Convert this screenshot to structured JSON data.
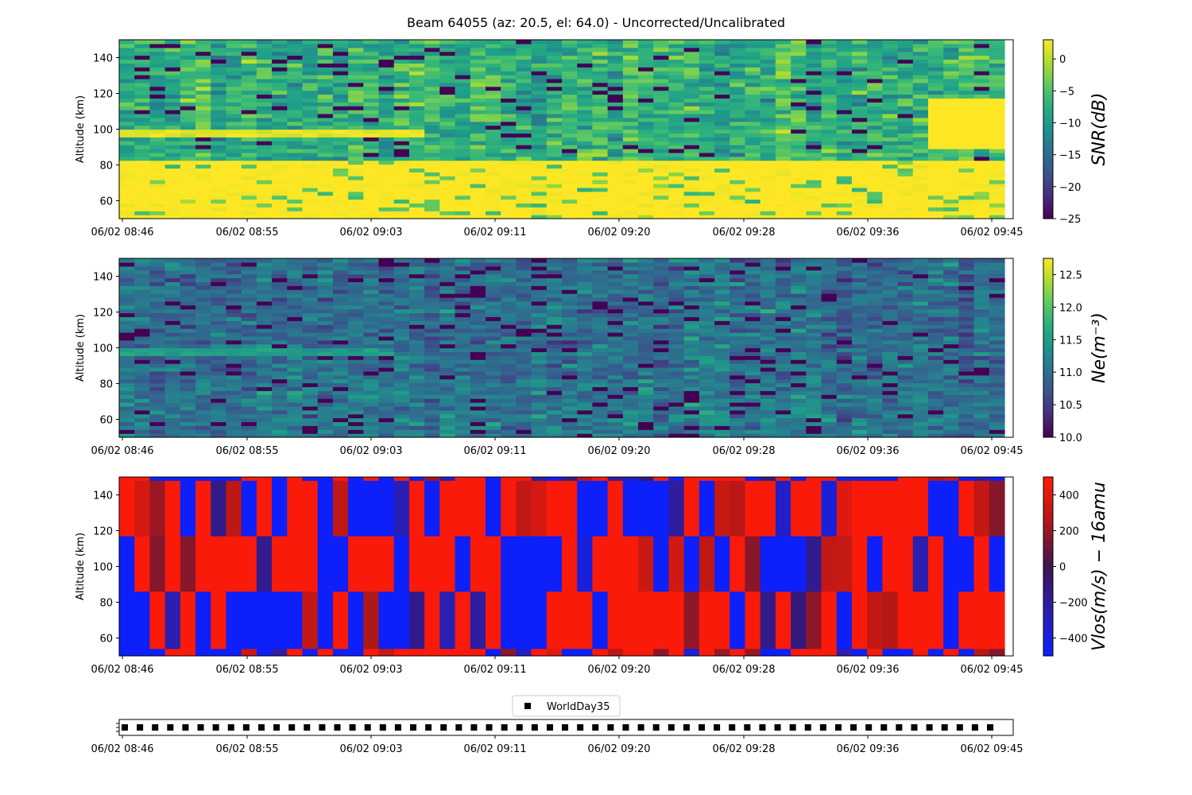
{
  "figure": {
    "title": "Beam 64055 (az: 20.5, el: 64.0) - Uncorrected/Uncalibrated"
  },
  "chart_data": [
    {
      "type": "heatmap",
      "name": "snr",
      "ylabel": "Altitude (km)",
      "ylim": [
        50,
        150
      ],
      "yticks": [
        60,
        80,
        100,
        120,
        140
      ],
      "x_ticklabels": [
        "06/02 08:46",
        "06/02 08:55",
        "06/02 09:03",
        "06/02 09:11",
        "06/02 09:20",
        "06/02 09:28",
        "06/02 09:36",
        "06/02 09:45"
      ],
      "colormap": "viridis",
      "colorbar_label": "SNR(dB)",
      "colorbar_range": [
        -25,
        3
      ],
      "colorbar_ticks": [
        0,
        -5,
        -10,
        -15,
        -20,
        -25
      ],
      "colorbar_ticklabels": [
        "0",
        "−5",
        "−10",
        "−15",
        "−20",
        "−25"
      ],
      "description_values": {
        "low_altitude_band_km": [
          50,
          82
        ],
        "low_altitude_snr_db": 3,
        "layer_altitude_km": [
          95,
          100
        ],
        "layer_snr_db": 2,
        "background_snr_db": [
          -12,
          -3
        ]
      }
    },
    {
      "type": "heatmap",
      "name": "ne",
      "ylabel": "Altitude (km)",
      "ylim": [
        50,
        150
      ],
      "yticks": [
        60,
        80,
        100,
        120,
        140
      ],
      "x_ticklabels": [
        "06/02 08:46",
        "06/02 08:55",
        "06/02 09:03",
        "06/02 09:11",
        "06/02 09:20",
        "06/02 09:28",
        "06/02 09:36",
        "06/02 09:45"
      ],
      "colormap": "viridis",
      "colorbar_label": "Ne(m⁻³)",
      "colorbar_range": [
        10.0,
        12.75
      ],
      "colorbar_ticks": [
        12.5,
        12.0,
        11.5,
        11.0,
        10.5,
        10.0
      ],
      "colorbar_ticklabels": [
        "12.5",
        "12.0",
        "11.5",
        "11.0",
        "10.5",
        "10.0"
      ],
      "description_values": {
        "typical_log_ne": [
          10.6,
          11.4
        ]
      }
    },
    {
      "type": "heatmap",
      "name": "vlos",
      "ylabel": "Altitude (km)",
      "ylim": [
        50,
        150
      ],
      "yticks": [
        60,
        80,
        100,
        120,
        140
      ],
      "x_ticklabels": [
        "06/02 08:46",
        "06/02 08:55",
        "06/02 09:03",
        "06/02 09:11",
        "06/02 09:20",
        "06/02 09:28",
        "06/02 09:36",
        "06/02 09:45"
      ],
      "colormap": "bwr-dark",
      "colorbar_label": "Vlos(m/s) − 16amu",
      "colorbar_range": [
        -500,
        500
      ],
      "colorbar_ticks": [
        400,
        200,
        0,
        -200,
        -400
      ],
      "colorbar_ticklabels": [
        "400",
        "200",
        "0",
        "−200",
        "−400"
      ],
      "altitude_bands_km": [
        [
          50,
          54
        ],
        [
          54,
          86
        ],
        [
          86,
          117
        ],
        [
          117,
          148
        ],
        [
          148,
          150
        ]
      ]
    },
    {
      "type": "scatter",
      "name": "mode",
      "legend": "WorldDay35",
      "legend_position": "top-center",
      "marker": "square",
      "n_points": 58,
      "x_ticklabels": [
        "06/02 08:46",
        "06/02 08:55",
        "06/02 09:03",
        "06/02 09:11",
        "06/02 09:20",
        "06/02 09:28",
        "06/02 09:36",
        "06/02 09:45"
      ]
    }
  ]
}
